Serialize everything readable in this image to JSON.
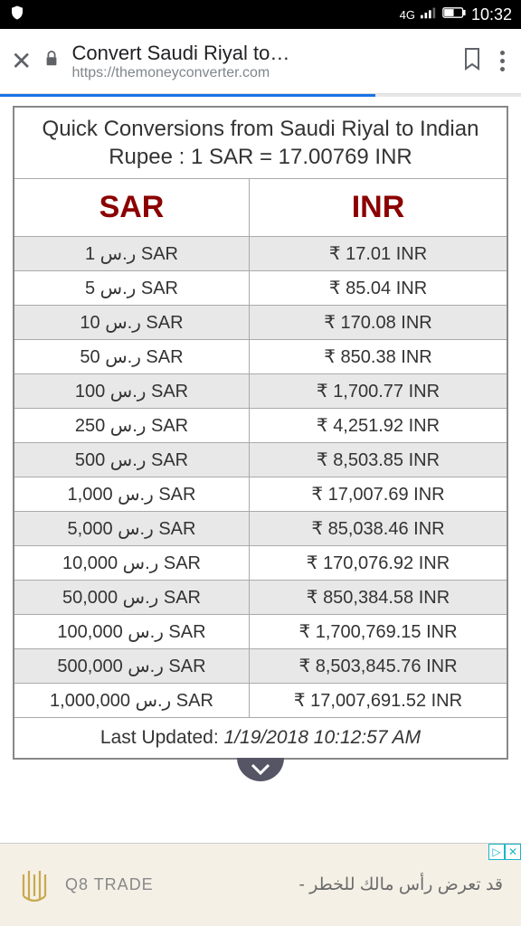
{
  "statusbar": {
    "network": "4G",
    "time": "10:32"
  },
  "browser": {
    "title": "Convert Saudi Riyal to…",
    "url": "https://themoneyconverter.com",
    "progress_pct": 72
  },
  "table": {
    "caption": "Quick Conversions from Saudi Riyal to Indian Rupee : 1 SAR = 17.00769 INR",
    "headers": {
      "left": "SAR",
      "right": "INR"
    },
    "header_color": "#8b0000",
    "rows": [
      {
        "sar": "ر.س 1 SAR",
        "inr": "₹ 17.01 INR"
      },
      {
        "sar": "ر.س 5 SAR",
        "inr": "₹ 85.04 INR"
      },
      {
        "sar": "ر.س 10 SAR",
        "inr": "₹ 170.08 INR"
      },
      {
        "sar": "ر.س 50 SAR",
        "inr": "₹ 850.38 INR"
      },
      {
        "sar": "ر.س 100 SAR",
        "inr": "₹ 1,700.77 INR"
      },
      {
        "sar": "ر.س 250 SAR",
        "inr": "₹ 4,251.92 INR"
      },
      {
        "sar": "ر.س 500 SAR",
        "inr": "₹ 8,503.85 INR"
      },
      {
        "sar": "ر.س 1,000 SAR",
        "inr": "₹ 17,007.69 INR"
      },
      {
        "sar": "ر.س 5,000 SAR",
        "inr": "₹ 85,038.46 INR"
      },
      {
        "sar": "ر.س 10,000 SAR",
        "inr": "₹ 170,076.92 INR"
      },
      {
        "sar": "ر.س 50,000 SAR",
        "inr": "₹ 850,384.58 INR"
      },
      {
        "sar": "ر.س 100,000 SAR",
        "inr": "₹ 1,700,769.15 INR"
      },
      {
        "sar": "ر.س 500,000 SAR",
        "inr": "₹ 8,503,845.76 INR"
      },
      {
        "sar": "ر.س 1,000,000 SAR",
        "inr": "₹ 17,007,691.52 INR"
      }
    ],
    "footer_label": "Last Updated: ",
    "footer_timestamp": "1/19/2018 10:12:57 AM"
  },
  "ad": {
    "brand": "Q8 TRADE",
    "tagline": "قد تعرض رأس مالك للخطر -",
    "info_symbol": "▷",
    "close_symbol": "✕",
    "logo_color": "#c9a94f"
  }
}
